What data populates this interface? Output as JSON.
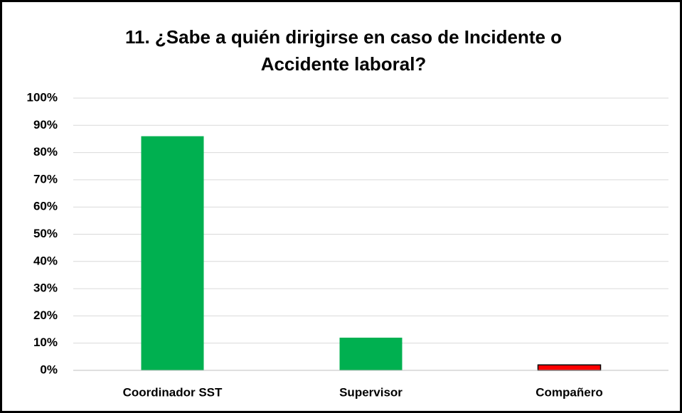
{
  "chart_data": {
    "type": "bar",
    "title": "11. ¿Sabe a quién dirigirse en caso de Incidente o Accidente laboral?",
    "categories": [
      "Coordinador SST",
      "Supervisor",
      "Compañero"
    ],
    "values": [
      86,
      12,
      2
    ],
    "colors": [
      "#00b050",
      "#00b050",
      "#ff0000"
    ],
    "ylim": [
      0,
      100
    ],
    "yticks": [
      {
        "value": 0,
        "label": "0%"
      },
      {
        "value": 10,
        "label": "10%"
      },
      {
        "value": 20,
        "label": "20%"
      },
      {
        "value": 30,
        "label": "30%"
      },
      {
        "value": 40,
        "label": "40%"
      },
      {
        "value": 50,
        "label": "50%"
      },
      {
        "value": 60,
        "label": "60%"
      },
      {
        "value": 70,
        "label": "70%"
      },
      {
        "value": 80,
        "label": "80%"
      },
      {
        "value": 90,
        "label": "90%"
      },
      {
        "value": 100,
        "label": "100%"
      }
    ],
    "grid": true
  }
}
